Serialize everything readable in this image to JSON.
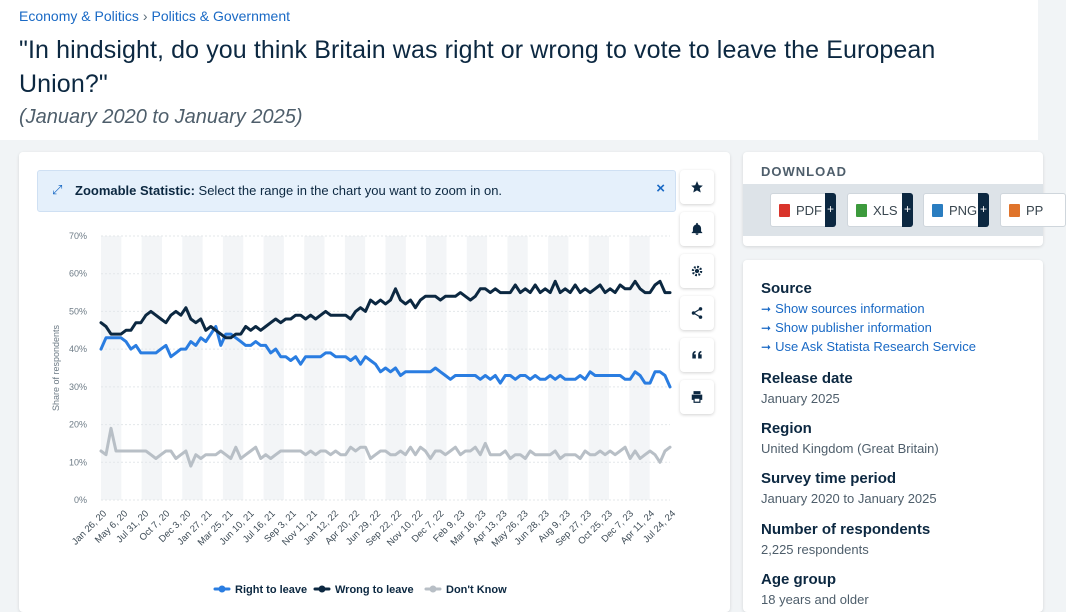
{
  "breadcrumb": {
    "item1": "Economy & Politics",
    "sep": "›",
    "item2": "Politics & Government"
  },
  "title": "\"In hindsight, do you think Britain was right or wrong to vote to leave the European Union?\"",
  "subtitle": "(January 2020 to January 2025)",
  "zoombar": {
    "bold": "Zoomable Statistic:",
    "text": " Select the range in the chart you want to zoom in on.",
    "close": "×"
  },
  "toolbar": {
    "icons": [
      "star-icon",
      "bell-icon",
      "gear-icon",
      "share-icon",
      "quote-icon",
      "print-icon"
    ]
  },
  "download": {
    "title": "DOWNLOAD",
    "buttons": [
      {
        "label": "PDF",
        "color": "#d9342b"
      },
      {
        "label": "XLS",
        "color": "#3c9a3c"
      },
      {
        "label": "PNG",
        "color": "#2a7dc0"
      },
      {
        "label": "PP",
        "color": "#e0742b"
      }
    ],
    "plus": "+"
  },
  "info": {
    "source_title": "Source",
    "links": [
      "Show sources information",
      "Show publisher information",
      "Use Ask Statista Research Service"
    ],
    "release_title": "Release date",
    "release_value": "January 2025",
    "region_title": "Region",
    "region_value": "United Kingdom (Great Britain)",
    "period_title": "Survey time period",
    "period_value": "January 2020 to January 2025",
    "respondents_title": "Number of respondents",
    "respondents_value": "2,225 respondents",
    "age_title": "Age group",
    "age_value": "18 years and older"
  },
  "chart_data": {
    "type": "line",
    "ylabel": "Share of respondents",
    "xlabel": "",
    "ylim": [
      0,
      70
    ],
    "yticks": [
      "0%",
      "10%",
      "20%",
      "30%",
      "40%",
      "50%",
      "60%",
      "70%"
    ],
    "grid": "alternating vertical bands",
    "legend_position": "bottom",
    "x_tick_labels": [
      "Jan 26, 20",
      "May 6, 20",
      "Jul 31, 20",
      "Oct 7, 20",
      "Dec 3, 20",
      "Jan 27, 21",
      "Mar 25, 21",
      "Jun 10, 21",
      "Jul 16, 21",
      "Sep 3, 21",
      "Nov 11, 21",
      "Jan 12, 22",
      "Apr 20, 22",
      "Jun 29, 22",
      "Sep 22, 22",
      "Nov 10, 22",
      "Dec 7, 22",
      "Feb 9, 23",
      "Mar 16, 23",
      "Apr 13, 23",
      "May 26, 23",
      "Jun 28, 23",
      "Aug 9, 23",
      "Sep 27, 23",
      "Oct 25, 23",
      "Dec 7, 23",
      "Apr 11, 24",
      "Jul 24, 24"
    ],
    "series": [
      {
        "name": "Right to leave",
        "color": "#2a7de1",
        "values": [
          40,
          43,
          43,
          43,
          43,
          42,
          40,
          41,
          39,
          39,
          39,
          39,
          40,
          41,
          38,
          39,
          40,
          40,
          42,
          41,
          43,
          42,
          44,
          46,
          41,
          44,
          44,
          43,
          42,
          41,
          41,
          42,
          41,
          41,
          39,
          40,
          38,
          38,
          37,
          38,
          36,
          38,
          38,
          38,
          38,
          39,
          39,
          38,
          38,
          38,
          37,
          38,
          36,
          38,
          37,
          36,
          34,
          35,
          34,
          35,
          33,
          34,
          34,
          34,
          34,
          34,
          34,
          35,
          34,
          33,
          32,
          33,
          33,
          33,
          33,
          33,
          32,
          33,
          32,
          33,
          31,
          33,
          33,
          32,
          33,
          33,
          32,
          33,
          32,
          32,
          33,
          32,
          33,
          32,
          32,
          32,
          33,
          32,
          34,
          33,
          33,
          33,
          33,
          33,
          33,
          32,
          32,
          34,
          33,
          31,
          31,
          34,
          34,
          33,
          30
        ]
      },
      {
        "name": "Wrong to leave",
        "color": "#0c2841",
        "values": [
          47,
          46,
          44,
          44,
          44,
          45,
          45,
          47,
          47,
          49,
          50,
          49,
          48,
          47,
          49,
          50,
          49,
          51,
          48,
          47,
          48,
          45,
          46,
          45,
          44,
          43,
          43,
          44,
          44,
          46,
          45,
          46,
          45,
          46,
          47,
          48,
          47,
          48,
          48,
          49,
          49,
          48,
          49,
          48,
          49,
          50,
          49,
          49,
          49,
          49,
          48,
          50,
          51,
          50,
          53,
          52,
          53,
          52,
          53,
          56,
          53,
          52,
          53,
          51,
          53,
          54,
          54,
          54,
          53,
          54,
          54,
          54,
          55,
          54,
          53,
          54,
          56,
          56,
          55,
          56,
          55,
          55,
          55,
          57,
          55,
          56,
          55,
          57,
          55,
          56,
          55,
          58,
          55,
          56,
          55,
          57,
          55,
          56,
          55,
          56,
          57,
          55,
          56,
          55,
          57,
          56,
          56,
          58,
          56,
          55,
          55,
          57,
          58,
          55,
          55
        ]
      },
      {
        "name": "Don't Know",
        "color": "#b8bfc6",
        "values": [
          13,
          12,
          19,
          13,
          13,
          13,
          13,
          13,
          13,
          13,
          12,
          11,
          12,
          13,
          13,
          11,
          12,
          13,
          9,
          12,
          11,
          12,
          12,
          12,
          13,
          12,
          11,
          14,
          11,
          12,
          13,
          14,
          11,
          12,
          11,
          12,
          13,
          13,
          13,
          13,
          13,
          12,
          13,
          12,
          13,
          13,
          12,
          13,
          12,
          12,
          14,
          13,
          14,
          14,
          11,
          12,
          13,
          13,
          12,
          12,
          13,
          12,
          14,
          12,
          14,
          13,
          11,
          13,
          13,
          12,
          13,
          14,
          12,
          13,
          13,
          14,
          12,
          15,
          12,
          12,
          12,
          13,
          11,
          12,
          12,
          11,
          13,
          12,
          12,
          12,
          12,
          13,
          11,
          12,
          12,
          12,
          11,
          13,
          12,
          12,
          13,
          12,
          13,
          12,
          13,
          14,
          11,
          13,
          11,
          12,
          13,
          12,
          10,
          13,
          14
        ]
      }
    ]
  }
}
